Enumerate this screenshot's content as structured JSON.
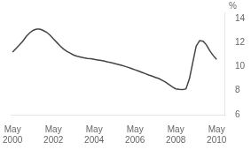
{
  "chart_data": {
    "type": "line",
    "ylabel": "%",
    "x": [
      2000.33,
      2000.5,
      2000.67,
      2000.83,
      2001.0,
      2001.17,
      2001.33,
      2001.5,
      2001.67,
      2001.83,
      2002.0,
      2002.17,
      2002.33,
      2002.5,
      2002.67,
      2002.83,
      2003.0,
      2003.17,
      2003.33,
      2003.5,
      2003.67,
      2003.83,
      2004.0,
      2004.17,
      2004.33,
      2004.5,
      2004.67,
      2004.83,
      2005.0,
      2005.17,
      2005.33,
      2005.5,
      2005.67,
      2005.83,
      2006.0,
      2006.17,
      2006.33,
      2006.5,
      2006.67,
      2006.83,
      2007.0,
      2007.17,
      2007.33,
      2007.5,
      2007.67,
      2007.83,
      2008.0,
      2008.17,
      2008.33,
      2008.5,
      2008.67,
      2008.83,
      2009.0,
      2009.17,
      2009.33,
      2009.5,
      2009.67,
      2009.83,
      2010.0,
      2010.17,
      2010.33
    ],
    "values": [
      11.2,
      11.5,
      11.8,
      12.1,
      12.5,
      12.8,
      13.0,
      13.1,
      13.1,
      13.0,
      12.85,
      12.6,
      12.3,
      12.0,
      11.7,
      11.45,
      11.25,
      11.1,
      10.95,
      10.85,
      10.78,
      10.72,
      10.68,
      10.65,
      10.6,
      10.55,
      10.5,
      10.45,
      10.38,
      10.32,
      10.25,
      10.18,
      10.1,
      10.02,
      9.93,
      9.83,
      9.73,
      9.63,
      9.52,
      9.42,
      9.3,
      9.2,
      9.1,
      9.0,
      8.85,
      8.7,
      8.5,
      8.3,
      8.15,
      8.1,
      8.08,
      8.15,
      9.0,
      10.4,
      11.7,
      12.15,
      12.1,
      11.8,
      11.3,
      10.9,
      10.6
    ],
    "color": "#444444",
    "xlim": [
      2000.25,
      2010.75
    ],
    "xticks": [
      {
        "value": 2000.33,
        "label": "May\n2000"
      },
      {
        "value": 2002.33,
        "label": "May\n2002"
      },
      {
        "value": 2004.33,
        "label": "May\n2004"
      },
      {
        "value": 2006.33,
        "label": "May\n2006"
      },
      {
        "value": 2008.33,
        "label": "May\n2008"
      },
      {
        "value": 2010.33,
        "label": "May\n2010"
      }
    ],
    "ylim": [
      6,
      14.5
    ],
    "yticks": [
      6,
      8,
      10,
      12,
      14
    ],
    "grid": false
  }
}
